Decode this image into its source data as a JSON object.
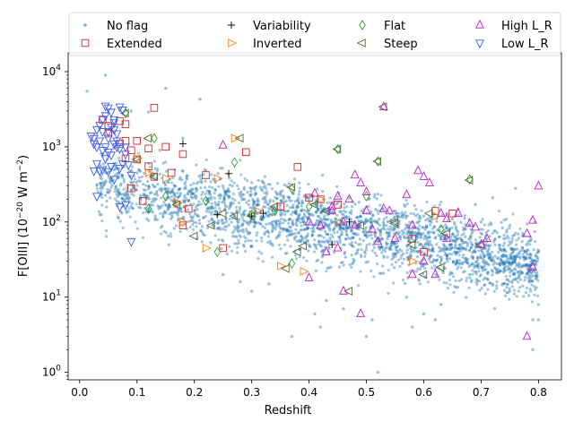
{
  "chart_data": {
    "type": "scatter",
    "title": "",
    "xlabel": "Redshift",
    "ylabel_main": "F[OIII] (10",
    "ylabel_exp": "−20",
    "ylabel_unit": " W m",
    "ylabel_unit_exp": "−2",
    "ylabel_close": ")",
    "xlim": [
      -0.02,
      0.84
    ],
    "ylim_log10": [
      -0.1,
      4.25
    ],
    "yscale": "log",
    "x_ticks": [
      {
        "value": 0.0,
        "label": "0.0"
      },
      {
        "value": 0.1,
        "label": "0.1"
      },
      {
        "value": 0.2,
        "label": "0.2"
      },
      {
        "value": 0.3,
        "label": "0.3"
      },
      {
        "value": 0.4,
        "label": "0.4"
      },
      {
        "value": 0.5,
        "label": "0.5"
      },
      {
        "value": 0.6,
        "label": "0.6"
      },
      {
        "value": 0.7,
        "label": "0.7"
      },
      {
        "value": 0.8,
        "label": "0.8"
      }
    ],
    "y_ticks": [
      {
        "exp": 0,
        "base": "10",
        "sup": "0"
      },
      {
        "exp": 1,
        "base": "10",
        "sup": "1"
      },
      {
        "exp": 2,
        "base": "10",
        "sup": "2"
      },
      {
        "exp": 3,
        "base": "10",
        "sup": "3"
      },
      {
        "exp": 4,
        "base": "10",
        "sup": "4"
      }
    ],
    "legend_position": "top",
    "series": [
      {
        "name": "No flag",
        "marker": "dot",
        "color": "#1f77b4",
        "points": [
          [
            0.013,
            5500
          ],
          [
            0.045,
            9000
          ],
          [
            0.15,
            6000
          ],
          [
            0.21,
            4300
          ],
          [
            0.09,
            3000
          ],
          [
            0.12,
            2900
          ],
          [
            0.18,
            1300
          ],
          [
            0.14,
            900
          ],
          [
            0.06,
            600
          ],
          [
            0.1,
            450
          ],
          [
            0.25,
            300
          ],
          [
            0.3,
            280
          ],
          [
            0.35,
            240
          ],
          [
            0.4,
            200
          ],
          [
            0.45,
            180
          ],
          [
            0.5,
            160
          ],
          [
            0.55,
            140
          ],
          [
            0.6,
            120
          ],
          [
            0.65,
            110
          ],
          [
            0.7,
            100
          ],
          [
            0.75,
            90
          ],
          [
            0.8,
            40
          ],
          [
            0.79,
            5
          ],
          [
            0.8,
            5
          ],
          [
            0.79,
            2
          ],
          [
            0.62,
            5
          ],
          [
            0.6,
            6
          ],
          [
            0.51,
            5
          ],
          [
            0.5,
            3
          ],
          [
            0.52,
            1
          ],
          [
            0.37,
            3
          ],
          [
            0.41,
            6
          ],
          [
            0.42,
            4
          ],
          [
            0.3,
            12
          ],
          [
            0.33,
            15
          ],
          [
            0.25,
            20
          ],
          [
            0.28,
            16
          ],
          [
            0.57,
            10
          ],
          [
            0.63,
            8
          ],
          [
            0.72,
            15
          ],
          [
            0.75,
            12
          ],
          [
            0.68,
            20
          ],
          [
            0.58,
            4
          ],
          [
            0.46,
            7
          ],
          [
            0.43,
            9
          ],
          [
            0.77,
            25
          ],
          [
            0.74,
            60
          ],
          [
            0.76,
            280
          ],
          [
            0.72,
            210
          ],
          [
            0.69,
            170
          ],
          [
            0.66,
            150
          ],
          [
            0.64,
            130
          ]
        ]
      },
      {
        "name": "Extended",
        "marker": "square",
        "color": "#d62728",
        "points": [
          [
            0.04,
            2300
          ],
          [
            0.05,
            1900
          ],
          [
            0.07,
            2200
          ],
          [
            0.08,
            2000
          ],
          [
            0.05,
            1500
          ],
          [
            0.08,
            1200
          ],
          [
            0.07,
            1100
          ],
          [
            0.1,
            1200
          ],
          [
            0.09,
            900
          ],
          [
            0.12,
            950
          ],
          [
            0.15,
            1000
          ],
          [
            0.18,
            800
          ],
          [
            0.13,
            3300
          ],
          [
            0.12,
            550
          ],
          [
            0.13,
            400
          ],
          [
            0.16,
            450
          ],
          [
            0.08,
            700
          ],
          [
            0.1,
            680
          ],
          [
            0.09,
            280
          ],
          [
            0.11,
            190
          ],
          [
            0.22,
            420
          ],
          [
            0.29,
            850
          ],
          [
            0.38,
            540
          ],
          [
            0.19,
            150
          ],
          [
            0.18,
            90
          ],
          [
            0.25,
            45
          ],
          [
            0.4,
            210
          ],
          [
            0.42,
            200
          ],
          [
            0.45,
            170
          ],
          [
            0.35,
            160
          ],
          [
            0.58,
            60
          ],
          [
            0.6,
            40
          ],
          [
            0.62,
            140
          ],
          [
            0.65,
            130
          ]
        ]
      },
      {
        "name": "Variability",
        "marker": "plus",
        "color": "#000000",
        "points": [
          [
            0.18,
            1100
          ],
          [
            0.26,
            440
          ],
          [
            0.44,
            50
          ],
          [
            0.24,
            125
          ],
          [
            0.32,
            130
          ],
          [
            0.3,
            120
          ],
          [
            0.47,
            100
          ]
        ]
      },
      {
        "name": "Inverted",
        "marker": "tri_right",
        "color": "#ff7f0e",
        "points": [
          [
            0.1,
            700
          ],
          [
            0.12,
            450
          ],
          [
            0.15,
            380
          ],
          [
            0.17,
            180
          ],
          [
            0.18,
            100
          ],
          [
            0.22,
            45
          ],
          [
            0.24,
            380
          ],
          [
            0.27,
            1300
          ],
          [
            0.31,
            140
          ],
          [
            0.35,
            26
          ],
          [
            0.39,
            22
          ],
          [
            0.42,
            200
          ],
          [
            0.45,
            100
          ],
          [
            0.62,
            120
          ],
          [
            0.58,
            30
          ]
        ]
      },
      {
        "name": "Flat",
        "marker": "diamond",
        "color": "#2ca02c",
        "points": [
          [
            0.13,
            1300
          ],
          [
            0.08,
            2800
          ],
          [
            0.12,
            150
          ],
          [
            0.15,
            220
          ],
          [
            0.24,
            40
          ],
          [
            0.27,
            620
          ],
          [
            0.22,
            190
          ],
          [
            0.34,
            140
          ],
          [
            0.37,
            280
          ],
          [
            0.4,
            160
          ],
          [
            0.45,
            930
          ],
          [
            0.37,
            28
          ],
          [
            0.3,
            125
          ],
          [
            0.63,
            80
          ],
          [
            0.68,
            370
          ],
          [
            0.5,
            220
          ],
          [
            0.52,
            640
          ]
        ]
      },
      {
        "name": "Steep",
        "marker": "tri_left",
        "color": "#556b2f",
        "points": [
          [
            0.08,
            2800
          ],
          [
            0.12,
            1300
          ],
          [
            0.13,
            400
          ],
          [
            0.1,
            680
          ],
          [
            0.17,
            170
          ],
          [
            0.2,
            65
          ],
          [
            0.23,
            90
          ],
          [
            0.25,
            130
          ],
          [
            0.28,
            1300
          ],
          [
            0.27,
            120
          ],
          [
            0.3,
            120
          ],
          [
            0.34,
            160
          ],
          [
            0.37,
            290
          ],
          [
            0.39,
            48
          ],
          [
            0.41,
            170
          ],
          [
            0.43,
            140
          ],
          [
            0.45,
            930
          ],
          [
            0.47,
            12
          ],
          [
            0.49,
            90
          ],
          [
            0.52,
            640
          ],
          [
            0.53,
            3400
          ],
          [
            0.55,
            100
          ],
          [
            0.58,
            50
          ],
          [
            0.6,
            20
          ],
          [
            0.61,
            130
          ],
          [
            0.64,
            70
          ],
          [
            0.68,
            360
          ],
          [
            0.36,
            24
          ],
          [
            0.38,
            40
          ],
          [
            0.55,
            95
          ],
          [
            0.63,
            25
          ],
          [
            0.7,
            50
          ]
        ]
      },
      {
        "name": "High L_R",
        "marker": "tri_up",
        "color": "#c41cc4",
        "points": [
          [
            0.25,
            1050
          ],
          [
            0.4,
            100
          ],
          [
            0.41,
            240
          ],
          [
            0.43,
            40
          ],
          [
            0.44,
            140
          ],
          [
            0.45,
            220
          ],
          [
            0.46,
            100
          ],
          [
            0.46,
            12
          ],
          [
            0.48,
            420
          ],
          [
            0.49,
            330
          ],
          [
            0.5,
            250
          ],
          [
            0.5,
            140
          ],
          [
            0.48,
            90
          ],
          [
            0.51,
            80
          ],
          [
            0.53,
            3400
          ],
          [
            0.53,
            150
          ],
          [
            0.57,
            230
          ],
          [
            0.58,
            90
          ],
          [
            0.59,
            480
          ],
          [
            0.6,
            400
          ],
          [
            0.61,
            330
          ],
          [
            0.6,
            30
          ],
          [
            0.62,
            20
          ],
          [
            0.63,
            130
          ],
          [
            0.64,
            110
          ],
          [
            0.66,
            130
          ],
          [
            0.68,
            95
          ],
          [
            0.69,
            85
          ],
          [
            0.7,
            50
          ],
          [
            0.78,
            70
          ],
          [
            0.79,
            25
          ],
          [
            0.79,
            105
          ],
          [
            0.78,
            3
          ],
          [
            0.8,
            300
          ],
          [
            0.49,
            6
          ],
          [
            0.45,
            45
          ],
          [
            0.4,
            18
          ],
          [
            0.44,
            160
          ],
          [
            0.47,
            200
          ],
          [
            0.55,
            60
          ],
          [
            0.58,
            20
          ],
          [
            0.64,
            60
          ],
          [
            0.71,
            60
          ],
          [
            0.42,
            90
          ],
          [
            0.52,
            55
          ],
          [
            0.54,
            140
          ]
        ]
      },
      {
        "name": "Low L_R",
        "marker": "tri_down",
        "color": "#3a5cf0",
        "points": [
          [
            0.02,
            1400
          ],
          [
            0.025,
            1100
          ],
          [
            0.03,
            1700
          ],
          [
            0.035,
            1950
          ],
          [
            0.04,
            2300
          ],
          [
            0.045,
            2600
          ],
          [
            0.05,
            3300
          ],
          [
            0.055,
            2900
          ],
          [
            0.06,
            2100
          ],
          [
            0.065,
            1200
          ],
          [
            0.07,
            3400
          ],
          [
            0.075,
            3100
          ],
          [
            0.04,
            900
          ],
          [
            0.045,
            1000
          ],
          [
            0.05,
            1300
          ],
          [
            0.055,
            780
          ],
          [
            0.06,
            1100
          ],
          [
            0.065,
            1000
          ],
          [
            0.07,
            520
          ],
          [
            0.075,
            600
          ],
          [
            0.08,
            1000
          ],
          [
            0.03,
            600
          ],
          [
            0.025,
            480
          ],
          [
            0.035,
            480
          ],
          [
            0.04,
            500
          ],
          [
            0.05,
            470
          ],
          [
            0.03,
            220
          ],
          [
            0.06,
            370
          ],
          [
            0.07,
            160
          ],
          [
            0.08,
            170
          ],
          [
            0.09,
            55
          ],
          [
            0.08,
            800
          ],
          [
            0.085,
            580
          ],
          [
            0.09,
            420
          ],
          [
            0.045,
            3500
          ],
          [
            0.05,
            1600
          ],
          [
            0.055,
            1850
          ],
          [
            0.06,
            2300
          ],
          [
            0.065,
            1500
          ],
          [
            0.03,
            1000
          ],
          [
            0.025,
            1300
          ],
          [
            0.035,
            1200
          ],
          [
            0.04,
            1600
          ],
          [
            0.045,
            700
          ],
          [
            0.05,
            850
          ],
          [
            0.055,
            550
          ],
          [
            0.06,
            1700
          ],
          [
            0.07,
            950
          ]
        ]
      }
    ]
  }
}
